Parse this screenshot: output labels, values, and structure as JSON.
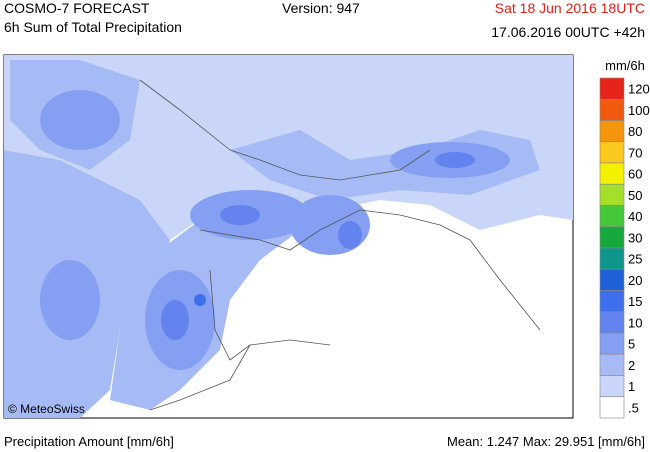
{
  "header": {
    "title": "COSMO-7 FORECAST",
    "subtitle": "6h Sum of Total Precipitation",
    "version": "Version: 947",
    "valid_time": "Sat 18 Jun 2016 18UTC",
    "run_time": "17.06.2016 00UTC +42h"
  },
  "legend": {
    "unit": "mm/6h",
    "items": [
      {
        "label": "120",
        "color": "#e8231a"
      },
      {
        "label": "100",
        "color": "#f25a10"
      },
      {
        "label": "80",
        "color": "#f5960a"
      },
      {
        "label": "70",
        "color": "#fbc81c"
      },
      {
        "label": "60",
        "color": "#f4f000"
      },
      {
        "label": "50",
        "color": "#a4e02a"
      },
      {
        "label": "40",
        "color": "#44c83a"
      },
      {
        "label": "30",
        "color": "#16a83c"
      },
      {
        "label": "25",
        "color": "#0f958a"
      },
      {
        "label": "20",
        "color": "#1f62d8"
      },
      {
        "label": "15",
        "color": "#3d70ea"
      },
      {
        "label": "10",
        "color": "#6383ee"
      },
      {
        "label": "5",
        "color": "#859ff2"
      },
      {
        "label": "2",
        "color": "#a6bbf6"
      },
      {
        "label": "1",
        "color": "#c9d6fa"
      },
      {
        "label": ".5",
        "color": "#ffffff"
      }
    ]
  },
  "map": {
    "credit": "© MeteoSwiss"
  },
  "footer": {
    "left": "Precipitation Amount [mm/6h]",
    "right": "Mean:  1.247 Max:  29.951 [mm/6h]"
  }
}
